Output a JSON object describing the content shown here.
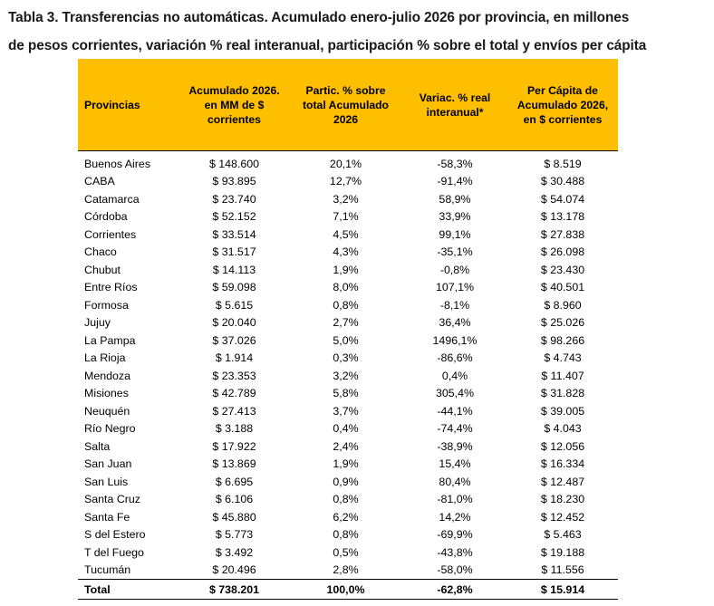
{
  "caption": {
    "line1": "Tabla 3. Transferencias no automáticas. Acumulado enero-julio 2026 por provincia, en millones",
    "line2": "de pesos corrientes, variación % real interanual, participación % sobre el total y envíos per cápita"
  },
  "table": {
    "header_color": "#fdbf00",
    "columns": [
      "Provincias",
      "Acumulado 2026. en MM de $ corrientes",
      "Partic. % sobre total Acumulado 2026",
      "Variac. % real interanual*",
      "Per Cápita de Acumulado 2026, en $ corrientes"
    ],
    "rows": [
      [
        "Buenos Aires",
        "$ 148.600",
        "20,1%",
        "-58,3%",
        "$ 8.519"
      ],
      [
        "CABA",
        "$ 93.895",
        "12,7%",
        "-91,4%",
        "$ 30.488"
      ],
      [
        "Catamarca",
        "$ 23.740",
        "3,2%",
        "58,9%",
        "$ 54.074"
      ],
      [
        "Córdoba",
        "$ 52.152",
        "7,1%",
        "33,9%",
        "$ 13.178"
      ],
      [
        "Corrientes",
        "$ 33.514",
        "4,5%",
        "99,1%",
        "$ 27.838"
      ],
      [
        "Chaco",
        "$ 31.517",
        "4,3%",
        "-35,1%",
        "$ 26.098"
      ],
      [
        "Chubut",
        "$ 14.113",
        "1,9%",
        "-0,8%",
        "$ 23.430"
      ],
      [
        "Entre Ríos",
        "$ 59.098",
        "8,0%",
        "107,1%",
        "$ 40.501"
      ],
      [
        "Formosa",
        "$ 5.615",
        "0,8%",
        "-8,1%",
        "$ 8.960"
      ],
      [
        "Jujuy",
        "$ 20.040",
        "2,7%",
        "36,4%",
        "$ 25.026"
      ],
      [
        "La Pampa",
        "$ 37.026",
        "5,0%",
        "1496,1%",
        "$ 98.266"
      ],
      [
        "La Rioja",
        "$ 1.914",
        "0,3%",
        "-86,6%",
        "$ 4.743"
      ],
      [
        "Mendoza",
        "$ 23.353",
        "3,2%",
        "0,4%",
        "$ 11.407"
      ],
      [
        "Misiones",
        "$ 42.789",
        "5,8%",
        "305,4%",
        "$ 31.828"
      ],
      [
        "Neuquén",
        "$ 27.413",
        "3,7%",
        "-44,1%",
        "$ 39.005"
      ],
      [
        "Río Negro",
        "$ 3.188",
        "0,4%",
        "-74,4%",
        "$ 4.043"
      ],
      [
        "Salta",
        "$ 17.922",
        "2,4%",
        "-38,9%",
        "$ 12.056"
      ],
      [
        "San Juan",
        "$ 13.869",
        "1,9%",
        "15,4%",
        "$ 16.334"
      ],
      [
        "San Luis",
        "$ 6.695",
        "0,9%",
        "80,4%",
        "$ 12.487"
      ],
      [
        "Santa Cruz",
        "$ 6.106",
        "0,8%",
        "-81,0%",
        "$ 18.230"
      ],
      [
        "Santa Fe",
        "$ 45.880",
        "6,2%",
        "14,2%",
        "$ 12.452"
      ],
      [
        "S del Estero",
        "$ 5.773",
        "0,8%",
        "-69,9%",
        "$ 5.463"
      ],
      [
        "T del Fuego",
        "$ 3.492",
        "0,5%",
        "-43,8%",
        "$ 19.188"
      ],
      [
        "Tucumán",
        "$ 20.496",
        "2,8%",
        "-58,0%",
        "$ 11.556"
      ]
    ],
    "total": [
      "Total",
      "$ 738.201",
      "100,0%",
      "-62,8%",
      "$ 15.914"
    ]
  }
}
